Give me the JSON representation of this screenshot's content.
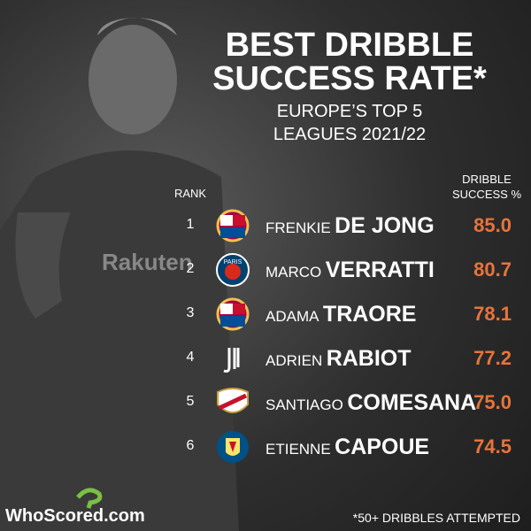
{
  "header": {
    "title_lines": [
      "BEST DRIBBLE",
      "SUCCESS RATE*"
    ],
    "subtitle_lines": [
      "EUROPE’S TOP 5",
      "LEAGUES 2021/22"
    ]
  },
  "table": {
    "rank_header": "RANK",
    "value_header_lines": [
      "DRIBBLE",
      "SUCCESS %"
    ],
    "rows": [
      {
        "rank": "1",
        "first": "FRENKIE",
        "last": "DE JONG",
        "value": "85.0"
      },
      {
        "rank": "2",
        "first": "MARCO",
        "last": "VERRATTI",
        "value": "80.7"
      },
      {
        "rank": "3",
        "first": "ADAMA",
        "last": "TRAORE",
        "value": "78.1"
      },
      {
        "rank": "4",
        "first": "ADRIEN",
        "last": "RABIOT",
        "value": "77.2"
      },
      {
        "rank": "5",
        "first": "SANTIAGO",
        "last": "COMESANA",
        "value": "75.0"
      },
      {
        "rank": "6",
        "first": "ETIENNE",
        "last": "CAPOUE",
        "value": "74.5"
      }
    ]
  },
  "footer": {
    "brand": "WhoScored.com",
    "note": "*50+ DRIBBLES ATTEMPTED"
  }
}
